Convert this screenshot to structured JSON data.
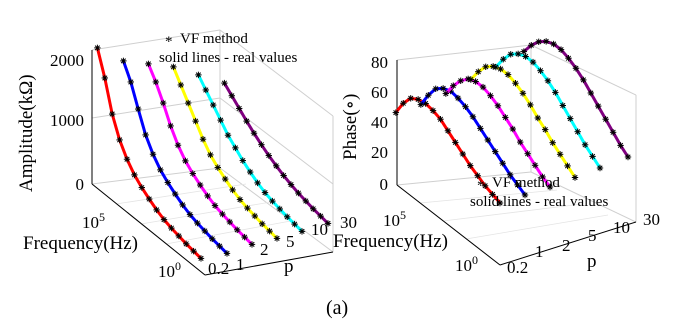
{
  "caption": "(a)",
  "chart_data": [
    {
      "type": "line",
      "panel": "left",
      "zlabel": "Amplitude(kΩ)",
      "xlabel": "Frequency(Hz)",
      "ylabel": "p",
      "z_ticks": [
        "0",
        "1000",
        "2000"
      ],
      "x_ticks": [
        {
          "base": "10",
          "exp": "5"
        },
        {
          "base": "10",
          "exp": "0"
        }
      ],
      "y_ticks": [
        "0.2",
        "1",
        "2",
        "5",
        "10",
        "30"
      ],
      "zlim": [
        0,
        2200
      ],
      "legend": {
        "marker": "*",
        "entries": [
          "VF method",
          "solid lines - real values"
        ]
      },
      "series": [
        {
          "p": 0.2,
          "color": "#ff0000",
          "freq_decades": [
            0.0,
            0.4,
            0.8,
            1.2,
            1.6,
            2.0,
            2.4,
            2.8,
            3.2,
            3.6,
            4.0,
            4.4,
            4.8,
            5.2,
            5.6
          ],
          "amplitude_kohm": [
            60,
            80,
            100,
            130,
            160,
            200,
            260,
            340,
            430,
            540,
            700,
            920,
            1250,
            1750,
            2150
          ]
        },
        {
          "p": 1,
          "color": "#0000ff",
          "freq_decades": [
            0.0,
            0.4,
            0.8,
            1.2,
            1.6,
            2.0,
            2.4,
            2.8,
            3.2,
            3.6,
            4.0,
            4.4,
            4.8,
            5.2,
            5.6
          ],
          "amplitude_kohm": [
            60,
            80,
            100,
            130,
            160,
            200,
            260,
            340,
            430,
            540,
            700,
            920,
            1250,
            1600,
            1850
          ]
        },
        {
          "p": 2,
          "color": "#ff00ff",
          "freq_decades": [
            0.0,
            0.4,
            0.8,
            1.2,
            1.6,
            2.0,
            2.4,
            2.8,
            3.2,
            3.6,
            4.0,
            4.4,
            4.8,
            5.2,
            5.6
          ],
          "amplitude_kohm": [
            60,
            80,
            100,
            130,
            160,
            200,
            260,
            340,
            430,
            540,
            700,
            920,
            1200,
            1450,
            1650
          ]
        },
        {
          "p": 5,
          "color": "#ffff00",
          "freq_decades": [
            0.0,
            0.4,
            0.8,
            1.2,
            1.6,
            2.0,
            2.4,
            2.8,
            3.2,
            3.6,
            4.0,
            4.4,
            4.8,
            5.2,
            5.6
          ],
          "amplitude_kohm": [
            60,
            80,
            100,
            130,
            160,
            200,
            260,
            340,
            430,
            540,
            700,
            900,
            1100,
            1300,
            1500
          ]
        },
        {
          "p": 10,
          "color": "#00ffff",
          "freq_decades": [
            0.0,
            0.4,
            0.8,
            1.2,
            1.6,
            2.0,
            2.4,
            2.8,
            3.2,
            3.6,
            4.0,
            4.4,
            4.8,
            5.2,
            5.6
          ],
          "amplitude_kohm": [
            60,
            80,
            100,
            130,
            160,
            200,
            260,
            340,
            430,
            540,
            650,
            800,
            950,
            1100,
            1250
          ]
        },
        {
          "p": 30,
          "color": "#800080",
          "freq_decades": [
            0.0,
            0.4,
            0.8,
            1.2,
            1.6,
            2.0,
            2.4,
            2.8,
            3.2,
            3.6,
            4.0,
            4.4,
            4.8,
            5.2,
            5.6
          ],
          "amplitude_kohm": [
            60,
            80,
            100,
            130,
            160,
            200,
            250,
            310,
            380,
            460,
            550,
            650,
            760,
            870,
            980
          ]
        }
      ]
    },
    {
      "type": "line",
      "panel": "right",
      "zlabel": "Phase(∘)",
      "xlabel": "Frequency(Hz)",
      "ylabel": "p",
      "z_ticks": [
        "0",
        "20",
        "40",
        "60",
        "80"
      ],
      "x_ticks": [
        {
          "base": "10",
          "exp": "5"
        },
        {
          "base": "10",
          "exp": "0"
        }
      ],
      "y_ticks": [
        "0.2",
        "1",
        "2",
        "5",
        "10",
        "30"
      ],
      "zlim": [
        0,
        90
      ],
      "legend": {
        "marker": "*",
        "entries": [
          "VF method",
          "solid lines - real values"
        ]
      },
      "series": [
        {
          "p": 0.2,
          "color": "#ff0000",
          "freq_decades": [
            0.0,
            0.4,
            0.8,
            1.2,
            1.6,
            2.0,
            2.4,
            2.8,
            3.2,
            3.6,
            4.0,
            4.4,
            4.8,
            5.2,
            5.6
          ],
          "phase_deg": [
            30,
            32,
            34,
            37,
            40,
            44,
            48,
            52,
            56,
            58,
            59,
            58,
            55,
            48,
            38
          ]
        },
        {
          "p": 1,
          "color": "#0000ff",
          "freq_decades": [
            0.0,
            0.4,
            0.8,
            1.2,
            1.6,
            2.0,
            2.4,
            2.8,
            3.2,
            3.6,
            4.0,
            4.4,
            4.8,
            5.2,
            5.6
          ],
          "phase_deg": [
            30,
            33,
            36,
            40,
            44,
            48,
            52,
            56,
            59,
            61,
            62,
            60,
            56,
            48,
            38
          ]
        },
        {
          "p": 2,
          "color": "#ff00ff",
          "freq_decades": [
            0.0,
            0.4,
            0.8,
            1.2,
            1.6,
            2.0,
            2.4,
            2.8,
            3.2,
            3.6,
            4.0,
            4.4,
            4.8,
            5.2,
            5.6
          ],
          "phase_deg": [
            30,
            33,
            37,
            41,
            45,
            50,
            54,
            58,
            61,
            63,
            63,
            61,
            56,
            49,
            40
          ]
        },
        {
          "p": 5,
          "color": "#ffff00",
          "freq_decades": [
            0.0,
            0.4,
            0.8,
            1.2,
            1.6,
            2.0,
            2.4,
            2.8,
            3.2,
            3.6,
            4.0,
            4.4,
            4.8,
            5.2,
            5.6
          ],
          "phase_deg": [
            31,
            35,
            39,
            43,
            48,
            52,
            57,
            61,
            64,
            66,
            66,
            64,
            60,
            53,
            44
          ]
        },
        {
          "p": 10,
          "color": "#00ffff",
          "freq_decades": [
            0.0,
            0.4,
            0.8,
            1.2,
            1.6,
            2.0,
            2.4,
            2.8,
            3.2,
            3.6,
            4.0,
            4.4,
            4.8,
            5.2,
            5.6
          ],
          "phase_deg": [
            32,
            36,
            40,
            45,
            50,
            55,
            60,
            64,
            67,
            69,
            69,
            67,
            63,
            56,
            47
          ]
        },
        {
          "p": 30,
          "color": "#800080",
          "freq_decades": [
            0.0,
            0.4,
            0.8,
            1.2,
            1.6,
            2.0,
            2.4,
            2.8,
            3.2,
            3.6,
            4.0,
            4.4,
            4.8,
            5.2,
            5.6
          ],
          "phase_deg": [
            34,
            38,
            43,
            48,
            53,
            58,
            63,
            67,
            70,
            72,
            72,
            70,
            66,
            60,
            52
          ]
        }
      ]
    }
  ]
}
